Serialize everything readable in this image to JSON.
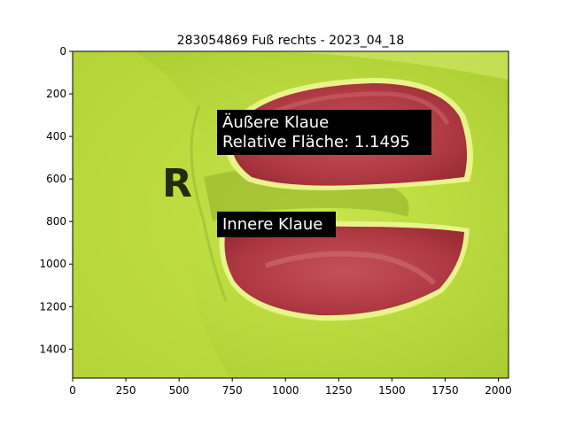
{
  "figure": {
    "title": "283054869 Fuß rechts - 2023_04_18",
    "x_ticks": [
      0,
      250,
      500,
      750,
      1000,
      1250,
      1500,
      1750,
      2000
    ],
    "y_ticks": [
      0,
      200,
      400,
      600,
      800,
      1000,
      1200,
      1400
    ],
    "x_range": [
      0,
      2048
    ],
    "y_range": [
      0,
      1536
    ]
  },
  "annotations": {
    "outer_claw": {
      "line1": "Äußere Klaue",
      "line2": "Relative Fläche: 1.1495"
    },
    "inner_claw": {
      "line1": "Innere Klaue"
    }
  },
  "photo": {
    "background_color": "#b9d83f",
    "claw_overlay_color": "#b3363f",
    "marking_letter": "R"
  }
}
